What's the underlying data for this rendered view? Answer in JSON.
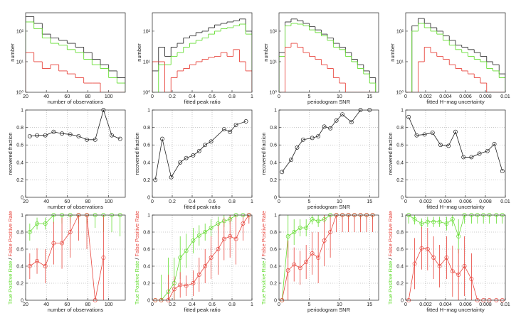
{
  "chart_data": [
    {
      "type": "histogram",
      "xlabel": "number of observations",
      "ylabel": "number",
      "log": true,
      "xlim": [
        20,
        116
      ],
      "ylim": [
        1,
        400
      ],
      "xticks": [
        20,
        40,
        60,
        80,
        100
      ],
      "yticks": [
        {
          "value": 1,
          "label": "10⁰"
        },
        {
          "value": 10,
          "label": "10¹"
        },
        {
          "value": 100,
          "label": "10²"
        }
      ],
      "bins": [
        20,
        28,
        36,
        44,
        52,
        60,
        68,
        76,
        84,
        92,
        100,
        108,
        116
      ],
      "series": [
        {
          "color": "#333333",
          "values": [
            300,
            180,
            80,
            60,
            50,
            40,
            30,
            20,
            12,
            8,
            5,
            3
          ]
        },
        {
          "color": "#66dd33",
          "values": [
            200,
            120,
            60,
            40,
            35,
            25,
            20,
            12,
            8,
            6,
            3,
            2
          ]
        },
        {
          "color": "#e8473f",
          "values": [
            20,
            10,
            6,
            8,
            5,
            4,
            3,
            2,
            2,
            1,
            1,
            1
          ]
        }
      ]
    },
    {
      "type": "histogram",
      "xlabel": "fitted peak ratio",
      "ylabel": "number",
      "log": true,
      "xlim": [
        0,
        1
      ],
      "ylim": [
        1,
        400
      ],
      "xticks": [
        0,
        0.2,
        0.4,
        0.6,
        0.8,
        1
      ],
      "yticks": [
        {
          "value": 1,
          "label": "10⁰"
        },
        {
          "value": 10,
          "label": "10¹"
        },
        {
          "value": 100,
          "label": "10²"
        }
      ],
      "bins": [
        0,
        0.0625,
        0.125,
        0.1875,
        0.25,
        0.3125,
        0.375,
        0.4375,
        0.5,
        0.5625,
        0.625,
        0.6875,
        0.75,
        0.8125,
        0.875,
        0.9375,
        1
      ],
      "series": [
        {
          "color": "#333333",
          "values": [
            5,
            30,
            15,
            30,
            40,
            60,
            70,
            90,
            100,
            130,
            160,
            180,
            200,
            220,
            250,
            100
          ]
        },
        {
          "color": "#66dd33",
          "values": [
            1,
            8,
            8,
            15,
            20,
            30,
            40,
            50,
            60,
            80,
            100,
            120,
            130,
            150,
            170,
            80
          ]
        },
        {
          "color": "#e8473f",
          "values": [
            10,
            10,
            1,
            3,
            5,
            6,
            8,
            10,
            12,
            14,
            15,
            20,
            15,
            25,
            10,
            5
          ]
        }
      ]
    },
    {
      "type": "histogram",
      "xlabel": "periodogram SNR",
      "ylabel": "number",
      "log": true,
      "xlim": [
        0,
        16.5
      ],
      "ylim": [
        1,
        400
      ],
      "xticks": [
        0,
        5,
        10,
        15
      ],
      "yticks": [
        {
          "value": 1,
          "label": "10⁰"
        },
        {
          "value": 10,
          "label": "10¹"
        },
        {
          "value": 100,
          "label": "10²"
        }
      ],
      "bins": [
        0,
        1,
        2,
        3,
        4,
        5,
        6,
        7,
        8,
        9,
        10,
        11,
        12,
        13,
        14,
        15,
        16
      ],
      "series": [
        {
          "color": "#333333",
          "values": [
            20,
            200,
            250,
            220,
            180,
            140,
            110,
            80,
            60,
            40,
            30,
            20,
            12,
            8,
            5,
            3
          ]
        },
        {
          "color": "#66dd33",
          "values": [
            15,
            150,
            180,
            170,
            150,
            110,
            90,
            70,
            50,
            30,
            25,
            15,
            10,
            6,
            4,
            2
          ]
        },
        {
          "color": "#e8473f",
          "values": [
            1,
            30,
            40,
            30,
            20,
            15,
            12,
            8,
            6,
            3,
            2,
            1,
            1,
            1,
            1,
            1
          ]
        }
      ]
    },
    {
      "type": "histogram",
      "xlabel": "fitted H−mag uncertainty",
      "ylabel": "number",
      "log": true,
      "xlim": [
        0,
        0.01
      ],
      "ylim": [
        1,
        400
      ],
      "xticks": [
        0,
        0.002,
        0.004,
        0.006,
        0.008,
        0.01
      ],
      "yticks": [
        {
          "value": 1,
          "label": "10⁰"
        },
        {
          "value": 10,
          "label": "10¹"
        },
        {
          "value": 100,
          "label": "10²"
        }
      ],
      "bins": [
        0,
        0.000625,
        0.00125,
        0.001875,
        0.0025,
        0.003125,
        0.00375,
        0.004375,
        0.005,
        0.005625,
        0.00625,
        0.006875,
        0.0075,
        0.008125,
        0.00875,
        0.009375,
        0.01
      ],
      "series": [
        {
          "color": "#333333",
          "values": [
            1,
            150,
            260,
            180,
            130,
            100,
            70,
            50,
            35,
            30,
            25,
            20,
            15,
            10,
            8,
            4
          ]
        },
        {
          "color": "#66dd33",
          "values": [
            1,
            100,
            180,
            130,
            100,
            80,
            50,
            35,
            25,
            20,
            15,
            12,
            10,
            6,
            5,
            3
          ]
        },
        {
          "color": "#e8473f",
          "values": [
            1,
            1,
            10,
            30,
            20,
            15,
            12,
            8,
            6,
            5,
            4,
            3,
            2,
            1,
            1,
            1
          ]
        }
      ]
    },
    {
      "type": "line",
      "xlabel": "number of observations",
      "ylabel": "recovered fraction",
      "grid": true,
      "xlim": [
        20,
        116
      ],
      "ylim": [
        0,
        1
      ],
      "xticks": [
        20,
        40,
        60,
        80,
        100
      ],
      "yticks": [
        0,
        0.2,
        0.4,
        0.6,
        0.8,
        1
      ],
      "x": [
        24,
        31,
        39,
        47,
        55,
        63,
        71,
        79,
        87,
        95,
        103,
        111
      ],
      "series": [
        {
          "color": "#222222",
          "values": [
            0.7,
            0.71,
            0.71,
            0.75,
            0.73,
            0.72,
            0.7,
            0.66,
            0.66,
            1,
            0.71,
            0.67
          ]
        }
      ]
    },
    {
      "type": "line",
      "xlabel": "fitted peak ratio",
      "ylabel": "recovered fraction",
      "grid": true,
      "xlim": [
        0,
        1
      ],
      "ylim": [
        0,
        1
      ],
      "xticks": [
        0,
        0.2,
        0.4,
        0.6,
        0.8,
        1
      ],
      "yticks": [
        0,
        0.2,
        0.4,
        0.6,
        0.8,
        1
      ],
      "x": [
        0.03,
        0.1,
        0.19,
        0.28,
        0.34,
        0.41,
        0.47,
        0.53,
        0.59,
        0.72,
        0.78,
        0.84,
        0.94
      ],
      "series": [
        {
          "color": "#222222",
          "values": [
            0.2,
            0.67,
            0.23,
            0.4,
            0.45,
            0.48,
            0.53,
            0.6,
            0.64,
            0.78,
            0.75,
            0.83,
            0.87
          ]
        }
      ]
    },
    {
      "type": "line",
      "xlabel": "periodogram SNR",
      "ylabel": "recovered fraction",
      "grid": true,
      "xlim": [
        0,
        16.5
      ],
      "ylim": [
        0,
        1
      ],
      "xticks": [
        0,
        5,
        10,
        15
      ],
      "yticks": [
        0,
        0.2,
        0.4,
        0.6,
        0.8,
        1
      ],
      "x": [
        0.5,
        2,
        3,
        4,
        5.5,
        6.5,
        7.5,
        8.5,
        9.5,
        10.5,
        12,
        13.5,
        15
      ],
      "series": [
        {
          "color": "#222222",
          "values": [
            0.29,
            0.43,
            0.57,
            0.66,
            0.68,
            0.7,
            0.81,
            0.79,
            0.88,
            0.95,
            0.86,
            1,
            1
          ]
        }
      ]
    },
    {
      "type": "line",
      "xlabel": "fitted H−mag uncertainty",
      "ylabel": "recovered fraction",
      "grid": true,
      "xlim": [
        0,
        0.01
      ],
      "ylim": [
        0,
        1
      ],
      "xticks": [
        0,
        0.002,
        0.004,
        0.006,
        0.008,
        0.01
      ],
      "yticks": [
        0,
        0.2,
        0.4,
        0.6,
        0.8,
        1
      ],
      "x": [
        0.0003,
        0.0011,
        0.0019,
        0.0027,
        0.0035,
        0.0043,
        0.005,
        0.0058,
        0.0066,
        0.0074,
        0.0082,
        0.0089,
        0.0097
      ],
      "series": [
        {
          "color": "#222222",
          "values": [
            0.92,
            0.71,
            0.72,
            0.74,
            0.6,
            0.59,
            0.75,
            0.46,
            0.46,
            0.5,
            0.53,
            0.61,
            0.3
          ]
        }
      ]
    },
    {
      "type": "errorline",
      "xlabel": "number of observations",
      "ylabel": [
        "True Positive Rate",
        "/",
        "False Positive Rate"
      ],
      "grid": true,
      "xlim": [
        20,
        116
      ],
      "ylim": [
        0,
        1
      ],
      "xticks": [
        20,
        40,
        60,
        80,
        100
      ],
      "yticks": [
        0,
        0.2,
        0.4,
        0.6,
        0.8,
        1
      ],
      "x": [
        24,
        31,
        39,
        47,
        55,
        63,
        71,
        79,
        87,
        95,
        103,
        111
      ],
      "series": [
        {
          "color": "#66dd33",
          "values": [
            0.8,
            0.9,
            0.9,
            1,
            1,
            1,
            1,
            1,
            1,
            1,
            1,
            1
          ],
          "errors": [
            0.1,
            0.07,
            0.07,
            0.1,
            0.1,
            0.1,
            0.1,
            0.1,
            0.15,
            0.2,
            0.2,
            0.25
          ]
        },
        {
          "color": "#e8473f",
          "values": [
            0.4,
            0.46,
            0.4,
            0.67,
            0.67,
            0.8,
            1,
            1,
            0,
            0.5,
            null,
            null
          ],
          "errors": [
            0.15,
            0.15,
            0.2,
            0.25,
            0.3,
            0.3,
            0.3,
            0.4,
            0,
            0.5,
            null,
            null
          ]
        }
      ]
    },
    {
      "type": "errorline",
      "xlabel": "fitted peak ratio",
      "ylabel": [
        "True Positive Rate",
        "/",
        "False Positive Rate"
      ],
      "grid": true,
      "xlim": [
        0,
        1
      ],
      "ylim": [
        0,
        1
      ],
      "xticks": [
        0,
        0.2,
        0.4,
        0.6,
        0.8,
        1
      ],
      "yticks": [
        0,
        0.2,
        0.4,
        0.6,
        0.8,
        1
      ],
      "x": [
        0.03,
        0.09,
        0.16,
        0.22,
        0.28,
        0.34,
        0.41,
        0.47,
        0.53,
        0.59,
        0.66,
        0.72,
        0.78,
        0.84,
        0.91,
        0.97
      ],
      "series": [
        {
          "color": "#66dd33",
          "values": [
            0,
            0,
            0.1,
            0.2,
            0.5,
            0.58,
            0.7,
            0.76,
            0.8,
            0.85,
            0.9,
            0.93,
            0.95,
            1,
            1,
            1
          ],
          "errors": [
            0,
            0.3,
            0.4,
            0.3,
            0.25,
            0.2,
            0.15,
            0.12,
            0.1,
            0.1,
            0.08,
            0.07,
            0.06,
            0.05,
            0.05,
            0.05
          ]
        },
        {
          "color": "#e8473f",
          "values": [
            0,
            0,
            0,
            0.13,
            0.18,
            0.17,
            0.2,
            0.3,
            0.4,
            0.5,
            0.6,
            0.72,
            0.75,
            0.72,
            0.9,
            1
          ],
          "errors": [
            0,
            0,
            0.3,
            0.15,
            0.15,
            0.12,
            0.15,
            0.2,
            0.2,
            0.25,
            0.3,
            0.25,
            0.25,
            0.3,
            0.2,
            0.1
          ]
        }
      ]
    },
    {
      "type": "errorline",
      "xlabel": "periodogram SNR",
      "ylabel": [
        "True Positive Rate",
        "/",
        "False Positive Rate"
      ],
      "grid": true,
      "xlim": [
        0,
        16.5
      ],
      "ylim": [
        0,
        1
      ],
      "xticks": [
        0,
        5,
        10,
        15
      ],
      "yticks": [
        0,
        0.2,
        0.4,
        0.6,
        0.8,
        1
      ],
      "x": [
        0.5,
        1.5,
        2.5,
        3.5,
        4.5,
        5.5,
        6.5,
        7.5,
        8.5,
        9.5,
        10.5,
        11.5,
        12.5,
        13.5,
        14.5,
        15.5
      ],
      "series": [
        {
          "color": "#66dd33",
          "values": [
            0,
            0.75,
            0.8,
            0.85,
            0.85,
            0.95,
            0.93,
            0.95,
            1,
            1,
            1,
            1,
            1,
            1,
            1,
            1
          ],
          "errors": [
            0,
            0.25,
            0.15,
            0.1,
            0.1,
            0.06,
            0.07,
            0.05,
            0.04,
            0.03,
            0.05,
            0.05,
            0.05,
            0.05,
            0.05,
            0.05
          ]
        },
        {
          "color": "#e8473f",
          "values": [
            0,
            0.35,
            0.42,
            0.38,
            0.45,
            0.55,
            0.5,
            0.7,
            0.8,
            1,
            1,
            1,
            1,
            1,
            1,
            1
          ],
          "errors": [
            0,
            0.35,
            0.2,
            0.2,
            0.2,
            0.25,
            0.3,
            0.3,
            0.3,
            0.2,
            0.2,
            0.2,
            0.2,
            0.2,
            0.2,
            0.2
          ]
        }
      ]
    },
    {
      "type": "errorline",
      "xlabel": "fitted H−mag uncertainty",
      "ylabel": [
        "True Positive Rate",
        "/",
        "False Positive Rate"
      ],
      "grid": true,
      "xlim": [
        0,
        0.01
      ],
      "ylim": [
        0,
        1
      ],
      "xticks": [
        0,
        0.002,
        0.004,
        0.006,
        0.008,
        0.01
      ],
      "yticks": [
        0,
        0.2,
        0.4,
        0.6,
        0.8,
        1
      ],
      "x": [
        0.0003,
        0.0009,
        0.0016,
        0.0022,
        0.0028,
        0.0034,
        0.0041,
        0.0047,
        0.0053,
        0.0059,
        0.0066,
        0.0072,
        0.0078,
        0.0084,
        0.0091,
        0.0097
      ],
      "series": [
        {
          "color": "#66dd33",
          "values": [
            1,
            0.95,
            0.9,
            0.92,
            0.92,
            0.92,
            0.9,
            0.95,
            0.75,
            1,
            1,
            1,
            1,
            1,
            1,
            1
          ],
          "errors": [
            0.1,
            0.06,
            0.06,
            0.06,
            0.06,
            0.06,
            0.08,
            0.08,
            0.2,
            0.1,
            0.1,
            0.1,
            0.1,
            0.1,
            0.1,
            0.1
          ]
        },
        {
          "color": "#e8473f",
          "values": [
            0,
            0.43,
            0.61,
            0.6,
            0.5,
            0.4,
            0.5,
            0.34,
            0.3,
            0.4,
            0.25,
            0,
            0,
            0,
            0,
            0
          ],
          "errors": [
            0,
            0.3,
            0.25,
            0.25,
            0.25,
            0.25,
            0.25,
            0.3,
            0.3,
            0.35,
            0.3,
            0,
            0,
            0,
            0,
            0
          ]
        }
      ]
    }
  ]
}
